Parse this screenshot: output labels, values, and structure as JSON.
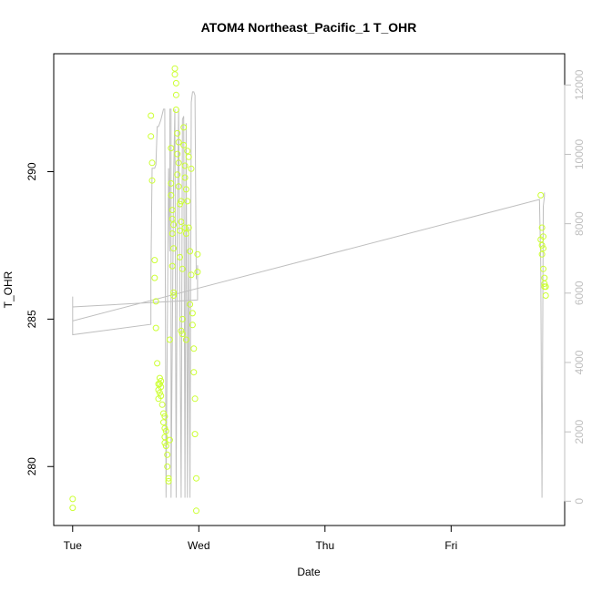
{
  "chart_data": {
    "type": "scatter",
    "title": "ATOM4 Northeast_Pacific_1 T_OHR",
    "xlabel": "Date",
    "ylabel": "T_OHR",
    "x_ticks": [
      "Tue",
      "Wed",
      "Thu",
      "Fri"
    ],
    "x_unit": "days since Tuesday 00:00 (Tue=0, Wed=1, Thu=2, Fri=3)",
    "xlim": [
      -0.15,
      3.9
    ],
    "y_ticks": [
      280,
      285,
      290
    ],
    "ylim": [
      278.0,
      294.0
    ],
    "y2_ticks": [
      0,
      2000,
      4000,
      6000,
      8000,
      10000,
      12000
    ],
    "y2lim": [
      -700,
      12900
    ],
    "grid": false,
    "colors": {
      "points": "#ccff33",
      "line": "#bfbfbf",
      "frame": "#000000",
      "right_axis": "#bfbfbf"
    },
    "series": [
      {
        "kind": "points",
        "axis": "left",
        "x": [
          0.0,
          0.0,
          0.62,
          0.62,
          0.63,
          0.63,
          0.65,
          0.65,
          0.66,
          0.66,
          0.67,
          0.68,
          0.68,
          0.68,
          0.69,
          0.69,
          0.69,
          0.7,
          0.7,
          0.7,
          0.71,
          0.72,
          0.72,
          0.73,
          0.73,
          0.73,
          0.73,
          0.74,
          0.74,
          0.75,
          0.75,
          0.76,
          0.76,
          0.77,
          0.77,
          0.78,
          0.78,
          0.78,
          0.79,
          0.79,
          0.79,
          0.79,
          0.8,
          0.8,
          0.8,
          0.8,
          0.81,
          0.81,
          0.82,
          0.82,
          0.82,
          0.83,
          0.83,
          0.83,
          0.84,
          0.84,
          0.84,
          0.85,
          0.85,
          0.85,
          0.86,
          0.86,
          0.86,
          0.87,
          0.87,
          0.87,
          0.88,
          0.88,
          0.89,
          0.89,
          0.89,
          0.9,
          0.9,
          0.9,
          0.91,
          0.91,
          0.92,
          0.92,
          0.93,
          0.93,
          0.94,
          0.94,
          0.95,
          0.95,
          0.96,
          0.96,
          0.97,
          0.97,
          0.98,
          0.98,
          0.99,
          0.99,
          3.71,
          3.71,
          3.72,
          3.72,
          3.72,
          3.73,
          3.73,
          3.73,
          3.74,
          3.74,
          3.74,
          3.75,
          3.75
        ],
        "y": [
          278.9,
          278.6,
          291.9,
          291.2,
          290.3,
          289.7,
          287.0,
          286.4,
          285.6,
          284.7,
          283.5,
          282.8,
          282.6,
          282.3,
          283.0,
          282.8,
          282.5,
          282.9,
          282.7,
          282.4,
          282.1,
          281.8,
          281.5,
          281.7,
          281.3,
          281.0,
          280.8,
          281.2,
          280.7,
          280.4,
          280.0,
          279.6,
          279.5,
          284.3,
          280.9,
          290.8,
          289.6,
          289.2,
          288.7,
          288.4,
          287.9,
          286.8,
          285.8,
          285.9,
          287.4,
          288.2,
          293.5,
          293.3,
          293.0,
          292.6,
          292.1,
          291.3,
          289.9,
          290.6,
          291.0,
          290.3,
          289.5,
          288.9,
          288.0,
          287.1,
          284.6,
          288.3,
          289.0,
          285.0,
          284.5,
          286.7,
          291.5,
          290.9,
          290.2,
          289.8,
          288.1,
          287.9,
          284.3,
          289.4,
          289.0,
          290.7,
          290.5,
          288.1,
          287.3,
          285.5,
          290.1,
          286.5,
          285.2,
          284.8,
          284.0,
          283.2,
          282.3,
          281.1,
          279.6,
          278.5,
          287.2,
          286.6,
          289.2,
          287.7,
          287.5,
          287.2,
          288.1,
          287.8,
          287.4,
          286.7,
          286.4,
          286.1,
          286.2,
          286.1,
          285.8
        ]
      },
      {
        "kind": "line",
        "axis": "right",
        "x": [
          0.0,
          0.0,
          0.62,
          0.62,
          0.63,
          0.65,
          0.66,
          0.67,
          0.68,
          0.69,
          0.7,
          0.72,
          0.73,
          0.74,
          0.76,
          0.77,
          0.77,
          0.78,
          0.78,
          0.8,
          0.81,
          0.81,
          0.82,
          0.83,
          0.84,
          0.86,
          0.87,
          0.88,
          0.89,
          0.9,
          0.91,
          0.92,
          0.93,
          0.94,
          0.95,
          0.96,
          0.97,
          0.98,
          0.98,
          0.99,
          0.99,
          0.99,
          0.0,
          0.0,
          3.7,
          3.71,
          3.72,
          3.73,
          3.74,
          3.74
        ],
        "y": [
          5900,
          4800,
          5100,
          6500,
          9600,
          9600,
          9700,
          10800,
          10800,
          10900,
          11000,
          11300,
          11300,
          100,
          9600,
          7200,
          11300,
          11300,
          100,
          9300,
          11300,
          11300,
          100,
          8200,
          11300,
          100,
          11000,
          11100,
          100,
          10900,
          100,
          7900,
          100,
          11500,
          11800,
          11800,
          11700,
          6400,
          6700,
          6700,
          6800,
          5800,
          5600,
          5200,
          8700,
          6900,
          100,
          8500,
          8800,
          8900
        ]
      }
    ]
  }
}
